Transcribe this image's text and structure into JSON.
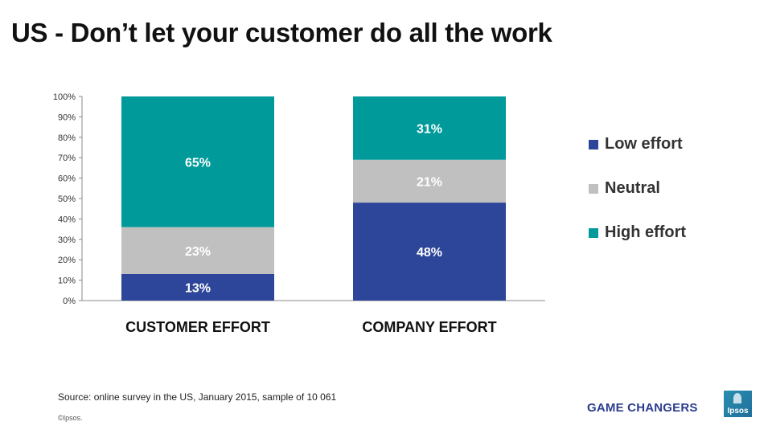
{
  "page": {
    "title": "US - Don’t let your customer do all the work",
    "source": "Source: online survey in the US, January 2015, sample of 10 061",
    "copyright": "©Ipsos.",
    "brand_text": "GAME CHANGERS",
    "logo_text": "Ipsos"
  },
  "chart_data": {
    "type": "bar",
    "stacked": true,
    "categories": [
      "CUSTOMER EFFORT",
      "COMPANY EFFORT"
    ],
    "series": [
      {
        "name": "Low effort",
        "values": [
          13,
          48
        ],
        "labels": [
          "13%",
          "48%"
        ],
        "color": "#2e4699"
      },
      {
        "name": "Neutral",
        "values": [
          23,
          21
        ],
        "labels": [
          "23%",
          "21%"
        ],
        "color": "#c0c0c0"
      },
      {
        "name": "High effort",
        "values": [
          65,
          31
        ],
        "labels": [
          "65%",
          "31%"
        ],
        "color": "#009a9a"
      }
    ],
    "ylim": [
      0,
      100
    ],
    "yticks": [
      "0%",
      "10%",
      "20%",
      "30%",
      "40%",
      "50%",
      "60%",
      "70%",
      "80%",
      "90%",
      "100%"
    ],
    "xlabel": "",
    "ylabel": "",
    "grid": false,
    "legend": "right"
  }
}
